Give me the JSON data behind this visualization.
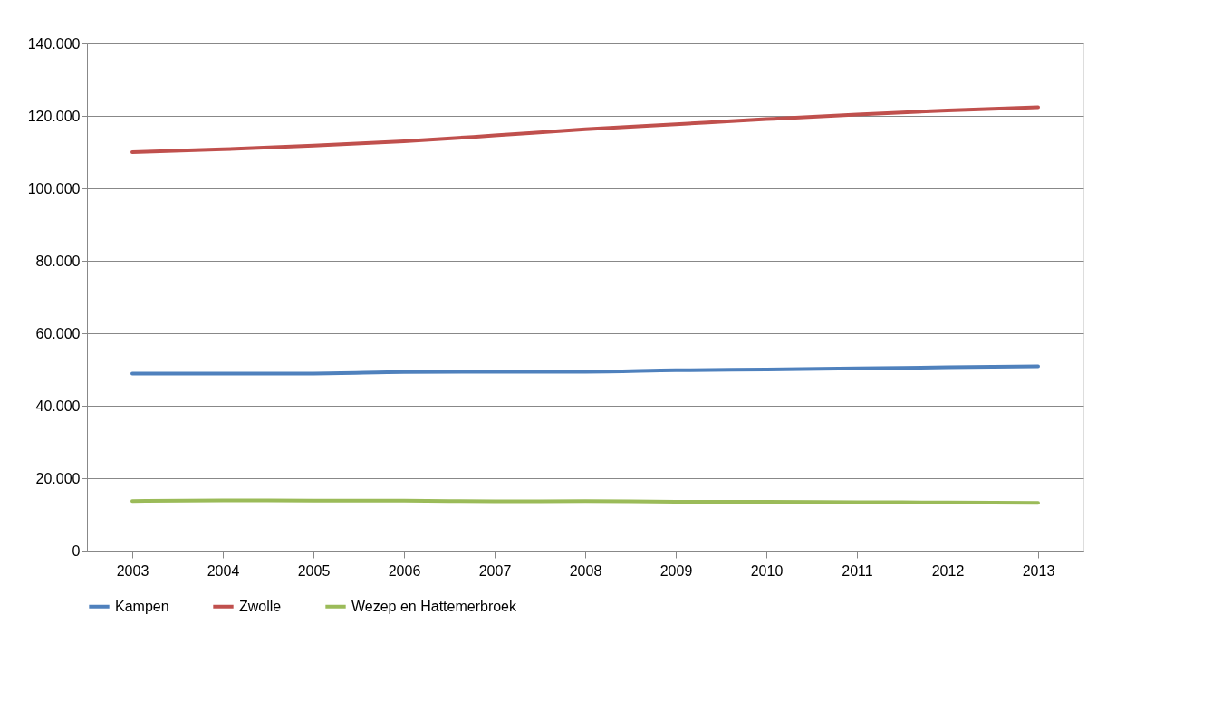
{
  "chart_data": {
    "type": "line",
    "categories": [
      "2003",
      "2004",
      "2005",
      "2006",
      "2007",
      "2008",
      "2009",
      "2010",
      "2011",
      "2012",
      "2013"
    ],
    "series": [
      {
        "name": "Kampen",
        "color": "#4f81bd",
        "values": [
          48900,
          48900,
          48900,
          49300,
          49400,
          49400,
          49800,
          50000,
          50300,
          50600,
          50900
        ]
      },
      {
        "name": "Zwolle",
        "color": "#c0504d",
        "values": [
          110000,
          110800,
          111800,
          113000,
          114600,
          116300,
          117700,
          119100,
          120400,
          121500,
          122400
        ]
      },
      {
        "name": "Wezep en Hattemerbroek",
        "color": "#9bbb59",
        "values": [
          13700,
          13900,
          13800,
          13800,
          13600,
          13700,
          13500,
          13500,
          13400,
          13300,
          13200
        ]
      }
    ],
    "ylim": [
      0,
      140000
    ],
    "yticks": [
      {
        "value": 0,
        "label": "0"
      },
      {
        "value": 20000,
        "label": "20.000"
      },
      {
        "value": 40000,
        "label": "40.000"
      },
      {
        "value": 60000,
        "label": "60.000"
      },
      {
        "value": 80000,
        "label": "80.000"
      },
      {
        "value": 100000,
        "label": "100.000"
      },
      {
        "value": 120000,
        "label": "120.000"
      },
      {
        "value": 140000,
        "label": "140.000"
      }
    ],
    "grid": "y",
    "legend": "bottom",
    "marker": "none",
    "line_style": "solid"
  }
}
